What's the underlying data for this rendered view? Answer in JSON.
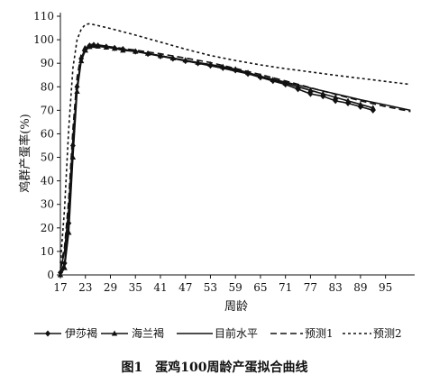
{
  "chart_data": {
    "type": "line",
    "title": "",
    "caption": "图1　蛋鸡100周龄产蛋拟合曲线",
    "xlabel": "周龄",
    "ylabel": "鸡群产蛋率(%)",
    "xlim": [
      17,
      102
    ],
    "ylim": [
      0,
      110
    ],
    "xticks": [
      17,
      23,
      29,
      35,
      41,
      47,
      53,
      59,
      65,
      71,
      77,
      83,
      89,
      95
    ],
    "yticks": [
      0,
      10,
      20,
      30,
      40,
      50,
      60,
      70,
      80,
      90,
      100,
      110
    ],
    "grid": false,
    "legend_position": "bottom",
    "series": [
      {
        "name": "伊莎褐",
        "style": "line-diamond",
        "color": "#111111",
        "x": [
          17,
          18,
          19,
          20,
          21,
          22,
          23,
          24,
          25,
          26,
          28,
          30,
          32,
          35,
          38,
          41,
          44,
          47,
          50,
          53,
          56,
          59,
          62,
          65,
          68,
          71,
          74,
          77,
          80,
          83,
          86,
          89,
          92
        ],
        "y": [
          1,
          5,
          22,
          55,
          80,
          92,
          96,
          97.5,
          97.8,
          97.5,
          97,
          96.5,
          96,
          95,
          94,
          93,
          92,
          91,
          90,
          89,
          88,
          87,
          85.5,
          84,
          82.5,
          81,
          79,
          77,
          76,
          74,
          73,
          71.5,
          70
        ]
      },
      {
        "name": "海兰褐",
        "style": "line-triangle",
        "color": "#111111",
        "x": [
          17,
          18,
          19,
          20,
          21,
          22,
          23,
          24,
          25,
          26,
          28,
          30,
          32,
          35,
          38,
          41,
          44,
          47,
          50,
          53,
          56,
          59,
          62,
          65,
          68,
          71,
          74,
          77,
          80,
          83,
          86,
          89,
          92
        ],
        "y": [
          0,
          3,
          18,
          50,
          78,
          91,
          95.5,
          97,
          97.5,
          97.2,
          96.8,
          96.3,
          95.5,
          95,
          94.2,
          93.2,
          92.2,
          91.3,
          90.3,
          89.5,
          88.5,
          87.5,
          86,
          84.5,
          83,
          81.5,
          80,
          78.5,
          77,
          75.5,
          74,
          72.5,
          71
        ]
      },
      {
        "name": "目前水平",
        "style": "solid",
        "color": "#111111",
        "x": [
          17,
          18,
          19,
          20,
          21,
          22,
          23,
          24,
          26,
          30,
          35,
          41,
          47,
          53,
          59,
          65,
          71,
          77,
          83,
          89,
          95,
          101
        ],
        "y": [
          2,
          10,
          28,
          58,
          80,
          92,
          96.5,
          97.5,
          97.3,
          96.5,
          95,
          93.2,
          91.2,
          89,
          86.7,
          84.4,
          82,
          79.5,
          77,
          74.5,
          72.3,
          70
        ]
      },
      {
        "name": "预测1",
        "style": "long-dash",
        "color": "#111111",
        "x": [
          17,
          18,
          19,
          20,
          21,
          22,
          23,
          24,
          26,
          29,
          35,
          41,
          47,
          53,
          59,
          65,
          71,
          77,
          83,
          89,
          95,
          101
        ],
        "y": [
          3,
          12,
          32,
          62,
          84,
          94,
          97.5,
          98,
          97.8,
          97,
          95.6,
          94,
          92.2,
          90.3,
          87.8,
          85.2,
          82.5,
          79.6,
          76.8,
          74,
          71.6,
          69.5
        ]
      },
      {
        "name": "预测2",
        "style": "short-dash",
        "color": "#111111",
        "x": [
          17,
          18,
          19,
          20,
          21,
          22,
          23,
          24,
          26,
          29,
          35,
          41,
          47,
          53,
          59,
          65,
          71,
          77,
          83,
          89,
          95,
          101
        ],
        "y": [
          5,
          28,
          62,
          88,
          100,
          104.5,
          106.5,
          106.8,
          106,
          104.8,
          102,
          99,
          96,
          93.3,
          91.2,
          89.3,
          87.7,
          86.3,
          84.9,
          83.6,
          82.3,
          81
        ]
      }
    ]
  }
}
